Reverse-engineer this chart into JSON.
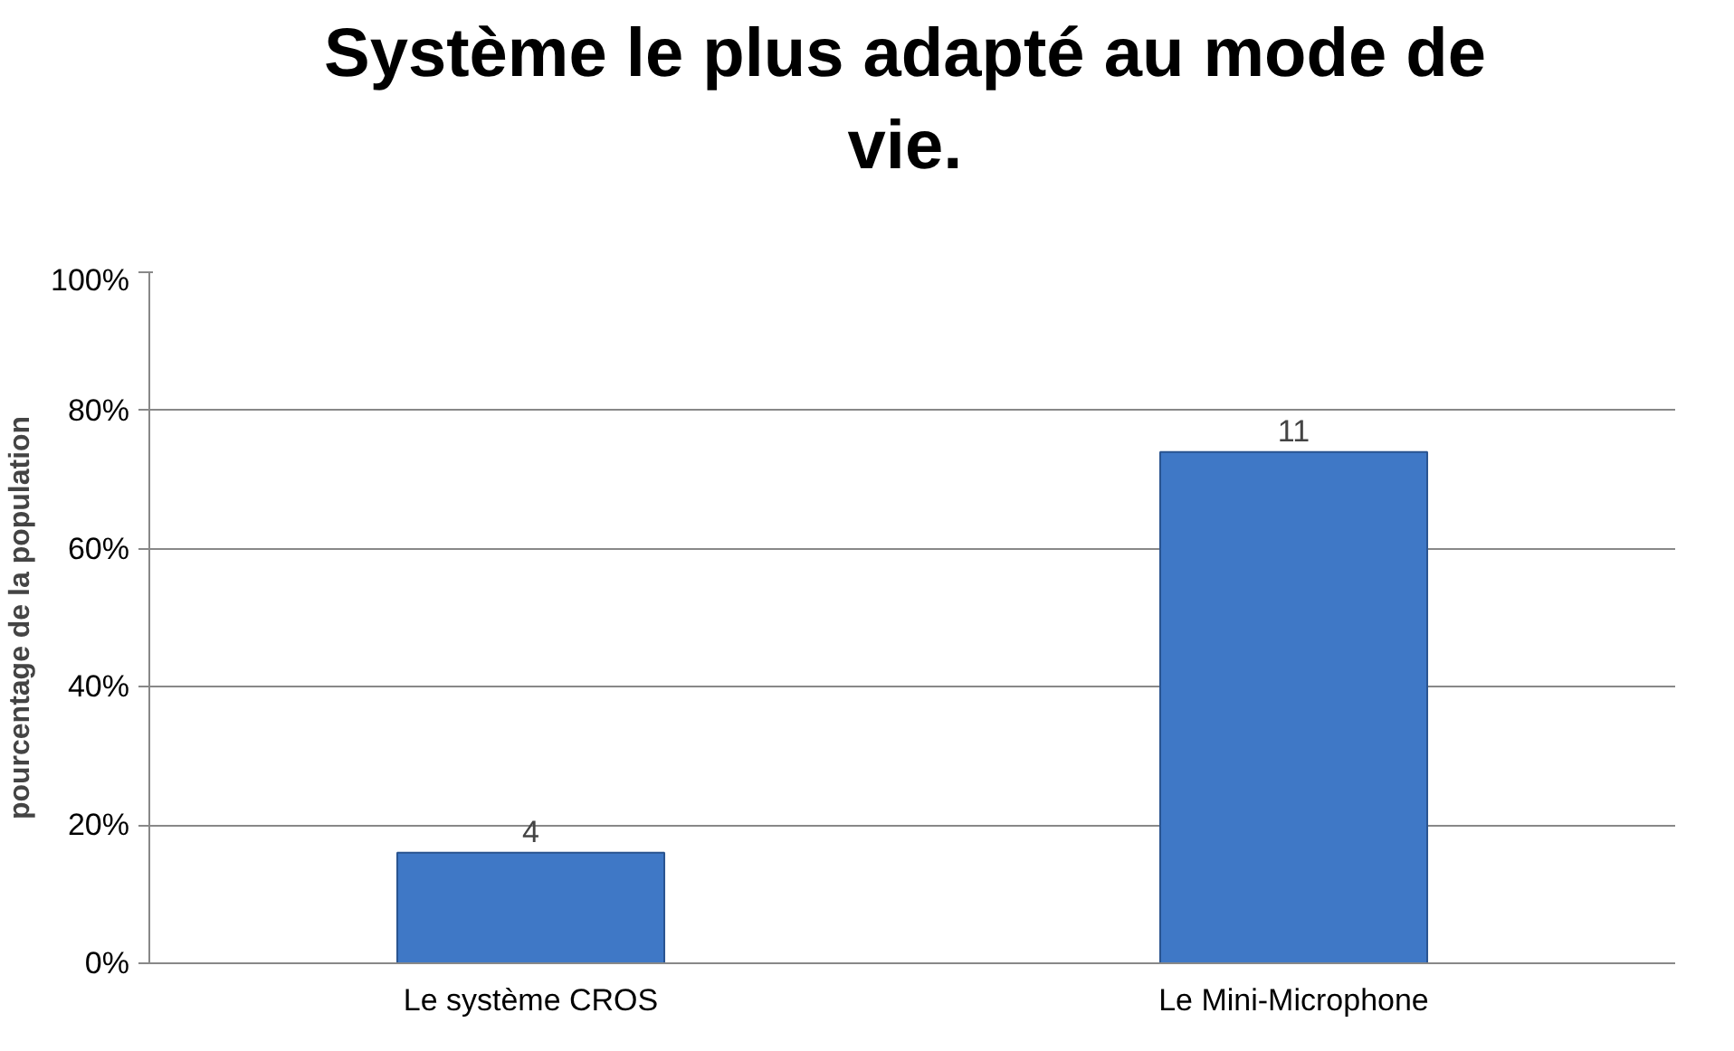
{
  "chart_data": {
    "type": "bar",
    "title": "Système le plus adapté au mode de vie.",
    "ylabel": "pourcentage de la population",
    "categories": [
      "Le système CROS",
      "Le Mini-Microphone"
    ],
    "values": [
      16,
      74
    ],
    "color": "#3f78c6",
    "annotations": [
      {
        "text": "4",
        "x": "Le système CROS",
        "y": 16
      },
      {
        "text": "11",
        "x": "Le Mini-Microphone",
        "y": 74
      }
    ],
    "ylim": [
      0,
      100
    ],
    "yticks": [
      {
        "value": 0,
        "label": "0%"
      },
      {
        "value": 20,
        "label": "20%"
      },
      {
        "value": 40,
        "label": "40%"
      },
      {
        "value": 60,
        "label": "60%"
      },
      {
        "value": 80,
        "label": "80%"
      },
      {
        "value": 100,
        "label": "100%"
      }
    ],
    "grid": "y"
  }
}
